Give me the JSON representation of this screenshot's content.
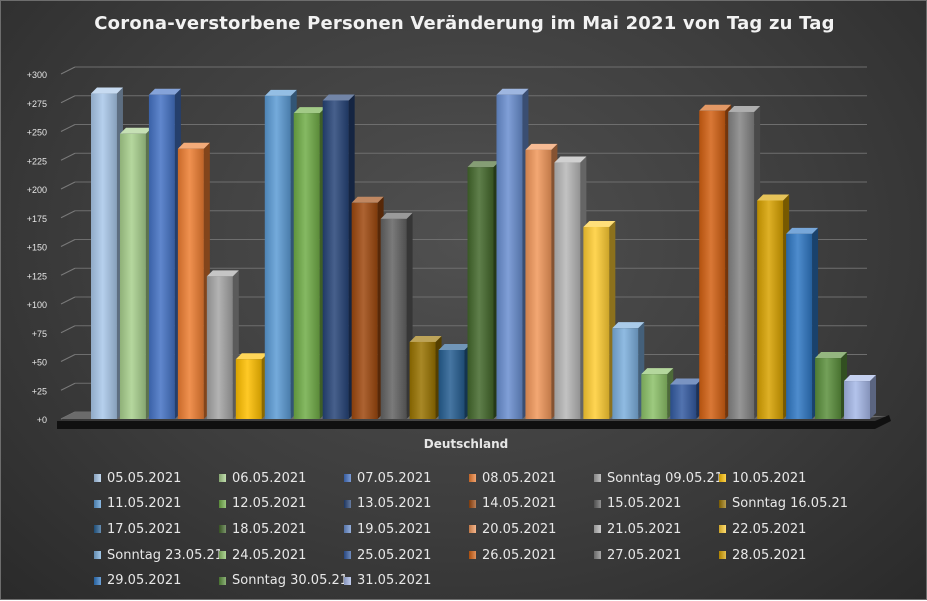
{
  "chart_data": {
    "type": "bar",
    "title": "Corona-verstorbene Personen Veränderung  im Mai 2021 von Tag zu Tag",
    "xlabel": "Deutschland",
    "ylabel": "",
    "ylim": [
      0,
      300
    ],
    "yticks": [
      "+0",
      "+25",
      "+50",
      "+75",
      "+100",
      "+125",
      "+150",
      "+175",
      "+200",
      "+225",
      "+250",
      "+275",
      "+300"
    ],
    "grid": true,
    "legend_position": "bottom",
    "series": [
      {
        "name": "05.05.2021",
        "value": 283,
        "color": "#a9c8ea"
      },
      {
        "name": "06.05.2021",
        "value": 248,
        "color": "#a8d08d"
      },
      {
        "name": "07.05.2021",
        "value": 282,
        "color": "#4472c4"
      },
      {
        "name": "08.05.2021",
        "value": 235,
        "color": "#ed7d31"
      },
      {
        "name": "Sonntag 09.05.21",
        "value": 124,
        "color": "#a5a5a5"
      },
      {
        "name": "10.05.2021",
        "value": 52,
        "color": "#ffc000"
      },
      {
        "name": "11.05.2021",
        "value": 281,
        "color": "#5b9bd5"
      },
      {
        "name": "12.05.2021",
        "value": 266,
        "color": "#70ad47"
      },
      {
        "name": "13.05.2021",
        "value": 277,
        "color": "#264478"
      },
      {
        "name": "14.05.2021",
        "value": 188,
        "color": "#9e480e"
      },
      {
        "name": "15.05.2021",
        "value": 174,
        "color": "#636363"
      },
      {
        "name": "Sonntag 16.05.21",
        "value": 67,
        "color": "#997300"
      },
      {
        "name": "17.05.2021",
        "value": 60,
        "color": "#255e91"
      },
      {
        "name": "18.05.2021",
        "value": 219,
        "color": "#43682b"
      },
      {
        "name": "19.05.2021",
        "value": 282,
        "color": "#698ed0"
      },
      {
        "name": "20.05.2021",
        "value": 234,
        "color": "#f1975a"
      },
      {
        "name": "21.05.2021",
        "value": 223,
        "color": "#b7b7b7"
      },
      {
        "name": "22.05.2021",
        "value": 167,
        "color": "#ffcd33"
      },
      {
        "name": "Sonntag 23.05.21",
        "value": 79,
        "color": "#7cafdd"
      },
      {
        "name": "24.05.2021",
        "value": 39,
        "color": "#8cc168"
      },
      {
        "name": "25.05.2021",
        "value": 30,
        "color": "#335aa1"
      },
      {
        "name": "26.05.2021",
        "value": 268,
        "color": "#d26012"
      },
      {
        "name": "27.05.2021",
        "value": 267,
        "color": "#848484"
      },
      {
        "name": "28.05.2021",
        "value": 190,
        "color": "#d8a200"
      },
      {
        "name": "29.05.2021",
        "value": 161,
        "color": "#2f78c4"
      },
      {
        "name": "Sonntag 30.05.21",
        "value": 53,
        "color": "#5a8f3c"
      },
      {
        "name": "31.05.2021",
        "value": 33,
        "color": "#a6b8e8"
      }
    ]
  }
}
